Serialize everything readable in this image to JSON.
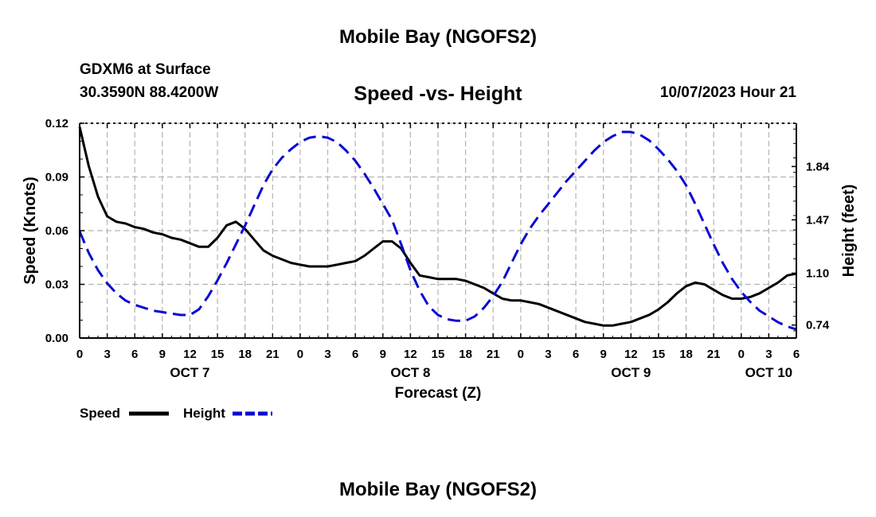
{
  "page": {
    "title_top": "Mobile Bay (NGOFS2)",
    "station": "GDXM6 at Surface",
    "coords": "30.3590N  88.4200W",
    "datetime": "10/07/2023 Hour 21",
    "title_bottom": "Mobile Bay (NGOFS2)"
  },
  "colors": {
    "speed": "#000000",
    "height": "#0a0ad2",
    "grid": "#b4b4b4"
  },
  "chart_data": {
    "type": "line",
    "title": "Speed -vs- Height",
    "xlabel": "Forecast (Z)",
    "ylabel_left": "Speed (Knots)",
    "ylabel_right": "Height (feet)",
    "xlim": [
      0,
      78
    ],
    "ylim_left": [
      0,
      0.12
    ],
    "ylim_right": [
      0.65,
      2.14
    ],
    "grid": true,
    "x_ticks": [
      0,
      3,
      6,
      9,
      12,
      15,
      18,
      21,
      24,
      27,
      30,
      33,
      36,
      39,
      42,
      45,
      48,
      51,
      54,
      57,
      60,
      63,
      66,
      69,
      72,
      75,
      78
    ],
    "x_tick_labels": [
      "0",
      "3",
      "6",
      "9",
      "12",
      "15",
      "18",
      "21",
      "0",
      "3",
      "6",
      "9",
      "12",
      "15",
      "18",
      "21",
      "0",
      "3",
      "6",
      "9",
      "12",
      "15",
      "18",
      "21",
      "0",
      "3",
      "6"
    ],
    "day_labels": [
      {
        "x": 12,
        "label": "OCT 7"
      },
      {
        "x": 36,
        "label": "OCT 8"
      },
      {
        "x": 60,
        "label": "OCT 9"
      },
      {
        "x": 75,
        "label": "OCT 10"
      }
    ],
    "left_ticks": [
      0.0,
      0.03,
      0.06,
      0.09,
      0.12
    ],
    "left_tick_labels": [
      "0.00",
      "0.03",
      "0.06",
      "0.09",
      "0.12"
    ],
    "right_ticks": [
      0.74,
      1.1,
      1.47,
      1.84
    ],
    "right_tick_labels": [
      "0.74",
      "1.10",
      "1.47",
      "1.84"
    ],
    "legend": [
      {
        "name": "Speed",
        "style": "solid"
      },
      {
        "name": "Height",
        "style": "dashed"
      }
    ],
    "series": [
      {
        "name": "Speed",
        "axis": "left",
        "x": [
          0,
          1,
          2,
          3,
          4,
          5,
          6,
          7,
          8,
          9,
          10,
          11,
          12,
          13,
          14,
          15,
          16,
          17,
          18,
          19,
          20,
          21,
          22,
          23,
          24,
          25,
          26,
          27,
          28,
          29,
          30,
          31,
          32,
          33,
          34,
          35,
          36,
          37,
          38,
          39,
          40,
          41,
          42,
          43,
          44,
          45,
          46,
          47,
          48,
          49,
          50,
          51,
          52,
          53,
          54,
          55,
          56,
          57,
          58,
          59,
          60,
          61,
          62,
          63,
          64,
          65,
          66,
          67,
          68,
          69,
          70,
          71,
          72,
          73,
          74,
          75,
          76,
          77,
          78
        ],
        "values": [
          0.118,
          0.096,
          0.079,
          0.068,
          0.065,
          0.064,
          0.062,
          0.061,
          0.059,
          0.058,
          0.056,
          0.055,
          0.053,
          0.051,
          0.051,
          0.056,
          0.063,
          0.065,
          0.061,
          0.055,
          0.049,
          0.046,
          0.044,
          0.042,
          0.041,
          0.04,
          0.04,
          0.04,
          0.041,
          0.042,
          0.043,
          0.046,
          0.05,
          0.054,
          0.054,
          0.05,
          0.042,
          0.035,
          0.034,
          0.033,
          0.033,
          0.033,
          0.032,
          0.03,
          0.028,
          0.025,
          0.022,
          0.021,
          0.021,
          0.02,
          0.019,
          0.017,
          0.015,
          0.013,
          0.011,
          0.009,
          0.008,
          0.007,
          0.007,
          0.008,
          0.009,
          0.011,
          0.013,
          0.016,
          0.02,
          0.025,
          0.029,
          0.031,
          0.03,
          0.027,
          0.024,
          0.022,
          0.022,
          0.023,
          0.025,
          0.028,
          0.031,
          0.035,
          0.036
        ]
      },
      {
        "name": "Height",
        "axis": "right",
        "x": [
          0,
          1,
          2,
          3,
          4,
          5,
          6,
          7,
          8,
          9,
          10,
          11,
          12,
          13,
          14,
          15,
          16,
          17,
          18,
          19,
          20,
          21,
          22,
          23,
          24,
          25,
          26,
          27,
          28,
          29,
          30,
          31,
          32,
          33,
          34,
          35,
          36,
          37,
          38,
          39,
          40,
          41,
          42,
          43,
          44,
          45,
          46,
          47,
          48,
          49,
          50,
          51,
          52,
          53,
          54,
          55,
          56,
          57,
          58,
          59,
          60,
          61,
          62,
          63,
          64,
          65,
          66,
          67,
          68,
          69,
          70,
          71,
          72,
          73,
          74,
          75,
          76,
          77,
          78
        ],
        "values": [
          1.39,
          1.24,
          1.12,
          1.03,
          0.96,
          0.91,
          0.88,
          0.86,
          0.84,
          0.83,
          0.82,
          0.81,
          0.81,
          0.85,
          0.94,
          1.05,
          1.17,
          1.3,
          1.43,
          1.57,
          1.71,
          1.82,
          1.9,
          1.96,
          2.01,
          2.04,
          2.05,
          2.04,
          2.01,
          1.95,
          1.88,
          1.79,
          1.69,
          1.58,
          1.47,
          1.3,
          1.12,
          0.98,
          0.87,
          0.81,
          0.78,
          0.77,
          0.77,
          0.8,
          0.86,
          0.94,
          1.04,
          1.17,
          1.3,
          1.41,
          1.5,
          1.58,
          1.66,
          1.74,
          1.81,
          1.88,
          1.95,
          2.01,
          2.05,
          2.08,
          2.08,
          2.06,
          2.02,
          1.96,
          1.89,
          1.81,
          1.71,
          1.58,
          1.44,
          1.3,
          1.17,
          1.06,
          0.97,
          0.9,
          0.84,
          0.8,
          0.76,
          0.73,
          0.71
        ]
      }
    ]
  }
}
